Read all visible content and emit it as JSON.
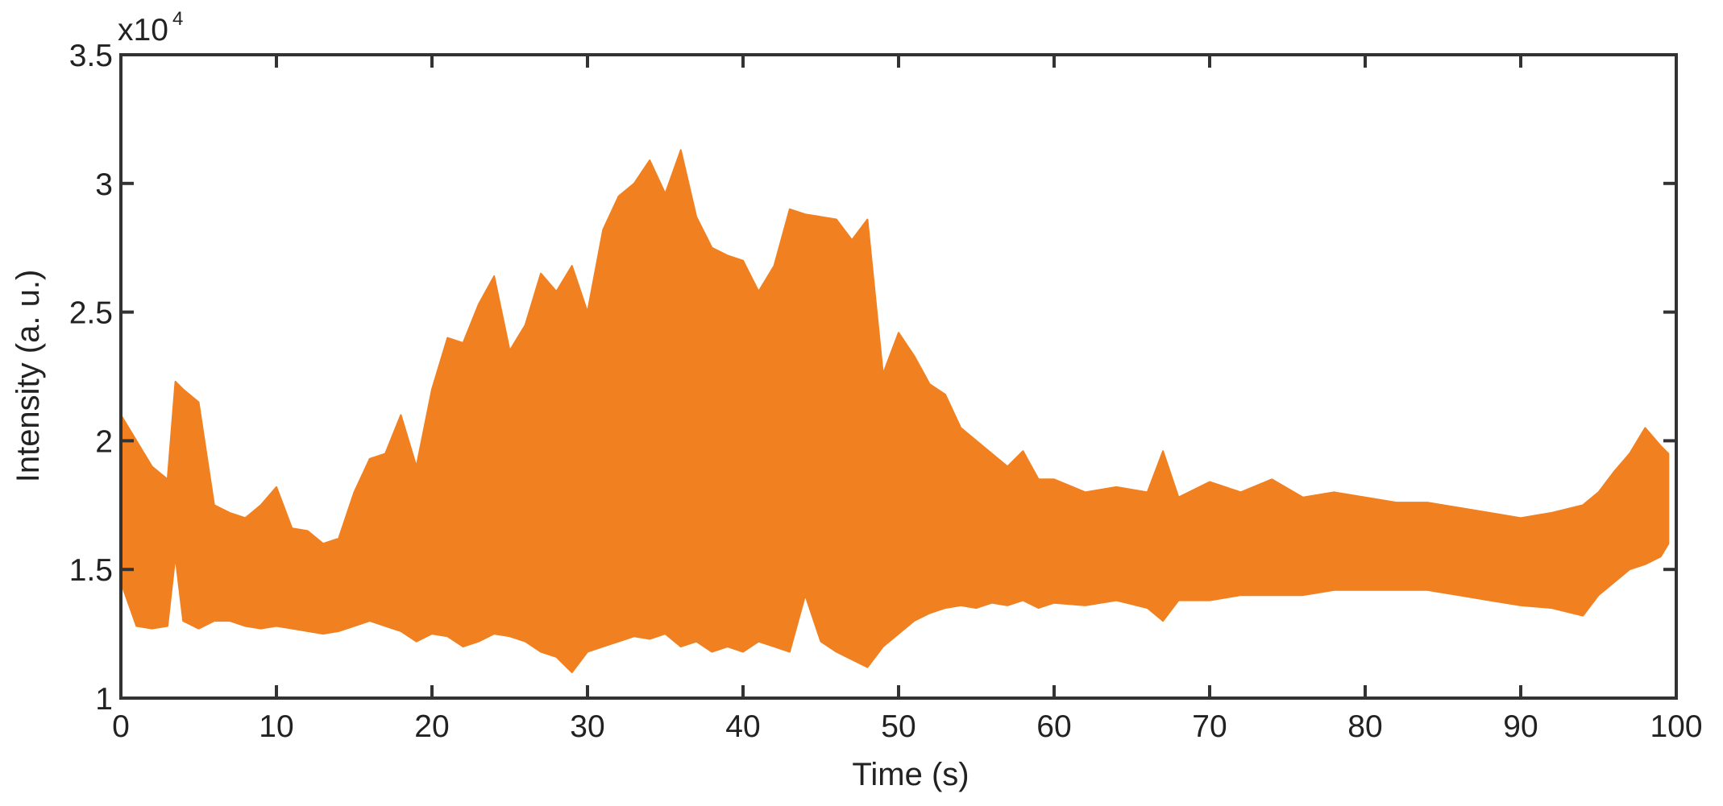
{
  "chart_data": {
    "type": "area",
    "title": "",
    "xlabel": "Time (s)",
    "ylabel": "Intensity (a. u.)",
    "y_multiplier_label": "x10",
    "y_multiplier_exponent": "4",
    "xlim": [
      0,
      100
    ],
    "ylim": [
      1,
      3.5
    ],
    "x_ticks": [
      0,
      10,
      20,
      30,
      40,
      50,
      60,
      70,
      80,
      90,
      100
    ],
    "x_tick_labels": [
      "0",
      "10",
      "20",
      "30",
      "40",
      "50",
      "60",
      "70",
      "80",
      "90",
      "100"
    ],
    "y_ticks": [
      1,
      1.5,
      2,
      2.5,
      3,
      3.5
    ],
    "y_tick_labels": [
      "1",
      "1.5",
      "2",
      "2.5",
      "3",
      "3.5"
    ],
    "grid": false,
    "legend": "none",
    "color": "#F08020",
    "series": [
      {
        "x": [
          0,
          1,
          2,
          3,
          3.5,
          4,
          5,
          6,
          7,
          8,
          9,
          10,
          11,
          12,
          13,
          14,
          15,
          16,
          17,
          18,
          19,
          20,
          21,
          22,
          23,
          24,
          25,
          26,
          27,
          28,
          29,
          30,
          31,
          32,
          33,
          34,
          35,
          36,
          37,
          38,
          39,
          40,
          41,
          42,
          43,
          44,
          45,
          46,
          47,
          48,
          49,
          50,
          51,
          52,
          53,
          54,
          55,
          56,
          57,
          58,
          59,
          60,
          62,
          64,
          66,
          67,
          68,
          70,
          72,
          74,
          76,
          78,
          80,
          82,
          84,
          86,
          88,
          90,
          92,
          94,
          95,
          96,
          97,
          98,
          99,
          99.5
        ],
        "upper": [
          2.1,
          2.0,
          1.9,
          1.85,
          2.23,
          2.2,
          2.15,
          1.75,
          1.72,
          1.7,
          1.75,
          1.82,
          1.66,
          1.65,
          1.6,
          1.62,
          1.8,
          1.93,
          1.95,
          2.1,
          1.9,
          2.2,
          2.4,
          2.38,
          2.53,
          2.64,
          2.35,
          2.45,
          2.65,
          2.58,
          2.68,
          2.5,
          2.82,
          2.95,
          3.0,
          3.09,
          2.96,
          3.13,
          2.87,
          2.75,
          2.72,
          2.7,
          2.58,
          2.68,
          2.9,
          2.88,
          2.87,
          2.86,
          2.78,
          2.86,
          2.26,
          2.42,
          2.33,
          2.22,
          2.18,
          2.05,
          2.0,
          1.95,
          1.9,
          1.96,
          1.85,
          1.85,
          1.8,
          1.82,
          1.8,
          1.96,
          1.78,
          1.84,
          1.8,
          1.85,
          1.78,
          1.8,
          1.78,
          1.76,
          1.76,
          1.74,
          1.72,
          1.7,
          1.72,
          1.75,
          1.8,
          1.88,
          1.95,
          2.05,
          1.98,
          1.95
        ],
        "lower": [
          1.45,
          1.28,
          1.27,
          1.28,
          1.55,
          1.3,
          1.27,
          1.3,
          1.3,
          1.28,
          1.27,
          1.28,
          1.27,
          1.26,
          1.25,
          1.26,
          1.28,
          1.3,
          1.28,
          1.26,
          1.22,
          1.25,
          1.24,
          1.2,
          1.22,
          1.25,
          1.24,
          1.22,
          1.18,
          1.16,
          1.1,
          1.18,
          1.2,
          1.22,
          1.24,
          1.23,
          1.25,
          1.2,
          1.22,
          1.18,
          1.2,
          1.18,
          1.22,
          1.2,
          1.18,
          1.4,
          1.22,
          1.18,
          1.15,
          1.12,
          1.2,
          1.25,
          1.3,
          1.33,
          1.35,
          1.36,
          1.35,
          1.37,
          1.36,
          1.38,
          1.35,
          1.37,
          1.36,
          1.38,
          1.35,
          1.3,
          1.38,
          1.38,
          1.4,
          1.4,
          1.4,
          1.42,
          1.42,
          1.42,
          1.42,
          1.4,
          1.38,
          1.36,
          1.35,
          1.32,
          1.4,
          1.45,
          1.5,
          1.52,
          1.55,
          1.6
        ]
      }
    ]
  }
}
